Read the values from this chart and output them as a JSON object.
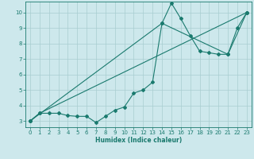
{
  "xlabel": "Humidex (Indice chaleur)",
  "xlim": [
    -0.5,
    23.5
  ],
  "ylim": [
    2.6,
    10.7
  ],
  "xticks": [
    0,
    1,
    2,
    3,
    4,
    5,
    6,
    7,
    8,
    9,
    10,
    11,
    12,
    13,
    14,
    15,
    16,
    17,
    18,
    19,
    20,
    21,
    22,
    23
  ],
  "yticks": [
    3,
    4,
    5,
    6,
    7,
    8,
    9,
    10
  ],
  "bg_color": "#cde8ec",
  "line_color": "#1a7a6e",
  "series": [
    {
      "x": [
        0,
        1,
        2,
        3,
        4,
        5,
        6,
        7,
        8,
        9,
        10,
        11,
        12,
        13,
        14,
        15,
        16,
        17,
        18,
        19,
        20,
        21,
        22,
        23
      ],
      "y": [
        3.0,
        3.5,
        3.5,
        3.5,
        3.35,
        3.3,
        3.3,
        2.9,
        3.3,
        3.7,
        3.9,
        4.8,
        5.0,
        5.5,
        9.3,
        10.6,
        9.6,
        8.5,
        7.5,
        7.4,
        7.3,
        7.3,
        9.0,
        10.0
      ]
    },
    {
      "x": [
        0,
        1,
        23
      ],
      "y": [
        3.0,
        3.5,
        10.0
      ]
    },
    {
      "x": [
        0,
        14,
        21,
        23
      ],
      "y": [
        3.0,
        9.3,
        7.3,
        10.0
      ]
    }
  ]
}
